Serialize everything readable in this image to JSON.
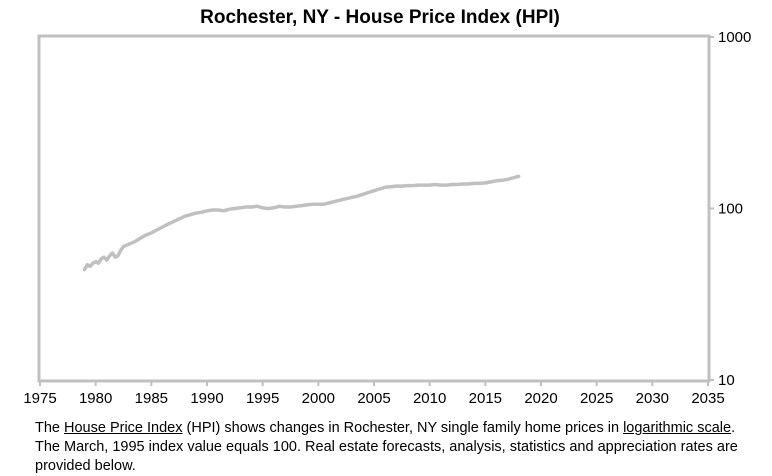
{
  "chart_data": {
    "type": "line",
    "title": "Rochester, NY - House Price Index (HPI)",
    "xlabel": "",
    "ylabel": "",
    "xlim": [
      1975,
      2035
    ],
    "ylim": [
      10,
      1000
    ],
    "y_scale": "log",
    "grid": false,
    "x_ticks": [
      "1975",
      "1980",
      "1985",
      "1990",
      "1995",
      "2000",
      "2005",
      "2010",
      "2015",
      "2020",
      "2025",
      "2030",
      "2035"
    ],
    "y_ticks": [
      "10",
      "100",
      "1000"
    ],
    "line_color": "#c0c0c0",
    "series": [
      {
        "x": [
          1979.0,
          1979.25,
          1979.5,
          1979.75,
          1980.0,
          1980.25,
          1980.5,
          1980.75,
          1981.0,
          1981.25,
          1981.5,
          1981.75,
          1982.0,
          1982.25,
          1982.5,
          1982.75,
          1983.0,
          1983.5,
          1984.0,
          1984.5,
          1985.0,
          1985.5,
          1986.0,
          1986.5,
          1987.0,
          1987.5,
          1988.0,
          1988.5,
          1989.0,
          1989.5,
          1990.0,
          1990.5,
          1991.0,
          1991.5,
          1992.0,
          1992.5,
          1993.0,
          1993.5,
          1994.0,
          1994.5,
          1995.0,
          1995.5,
          1996.0,
          1996.5,
          1997.0,
          1997.5,
          1998.0,
          1998.5,
          1999.0,
          1999.5,
          2000.0,
          2000.5,
          2001.0,
          2001.5,
          2002.0,
          2002.5,
          2003.0,
          2003.5,
          2004.0,
          2004.5,
          2005.0,
          2005.5,
          2006.0,
          2006.5,
          2007.0,
          2007.5,
          2008.0,
          2008.5,
          2009.0,
          2009.5,
          2010.0,
          2010.5,
          2011.0,
          2011.5,
          2012.0,
          2012.5,
          2013.0,
          2013.5,
          2014.0,
          2014.5,
          2015.0,
          2015.5,
          2016.0,
          2016.5,
          2017.0,
          2017.5,
          2018.0
        ],
        "values": [
          44,
          47,
          46,
          48,
          49,
          48,
          51,
          52,
          50,
          53,
          55,
          52,
          53,
          57,
          60,
          61,
          62,
          64,
          67,
          70,
          72,
          75,
          78,
          81,
          84,
          87,
          90,
          92,
          94,
          95,
          97,
          98,
          98,
          97,
          99,
          100,
          101,
          102,
          102,
          103,
          101,
          100,
          101,
          103,
          102,
          102,
          103,
          104,
          105,
          106,
          106,
          106,
          108,
          110,
          112,
          114,
          116,
          118,
          121,
          124,
          127,
          130,
          133,
          134,
          135,
          135,
          136,
          136,
          137,
          137,
          137,
          138,
          137,
          137,
          138,
          138,
          139,
          139,
          140,
          140,
          141,
          143,
          145,
          146,
          148,
          151,
          154
        ]
      }
    ],
    "caption": {
      "part1": "The ",
      "link1": "House Price Index",
      "part2": " (HPI) shows changes in Rochester, NY single family home prices in ",
      "link2": "logarithmic scale",
      "part3": ". The March, 1995 index value equals 100.  Real estate forecasts, analysis, statistics and appreciation rates are provided below."
    }
  }
}
